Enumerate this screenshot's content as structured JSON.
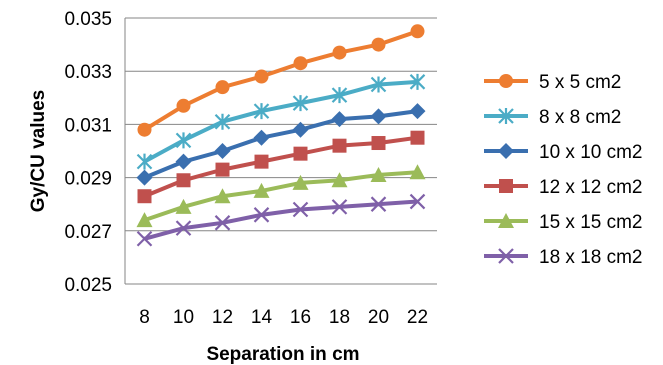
{
  "chart_data": {
    "type": "line",
    "title": "",
    "xlabel": "Separation in cm",
    "ylabel": "Gy/CU values",
    "x": [
      8,
      10,
      12,
      14,
      16,
      18,
      20,
      22
    ],
    "x_tick_labels": [
      "8",
      "10",
      "12",
      "14",
      "16",
      "18",
      "20",
      "22"
    ],
    "ylim": [
      0.025,
      0.035
    ],
    "y_ticks": [
      0.025,
      0.027,
      0.029,
      0.031,
      0.033,
      0.035
    ],
    "y_tick_labels": [
      "0.025",
      "0.027",
      "0.029",
      "0.031",
      "0.033",
      "0.035"
    ],
    "grid": "horizontal",
    "legend_position": "right",
    "series": [
      {
        "name": "5 x 5 cm2",
        "color": "#ED7D31",
        "marker": "circle",
        "values": [
          0.0308,
          0.0317,
          0.0324,
          0.0328,
          0.0333,
          0.0337,
          0.034,
          0.0345
        ]
      },
      {
        "name": "8 x 8 cm2",
        "color": "#4BACC6",
        "marker": "asterisk",
        "values": [
          0.0296,
          0.0304,
          0.0311,
          0.0315,
          0.0318,
          0.0321,
          0.0325,
          0.0326
        ]
      },
      {
        "name": "10 x 10 cm2",
        "color": "#3A6FAF",
        "marker": "diamond",
        "values": [
          0.029,
          0.0296,
          0.03,
          0.0305,
          0.0308,
          0.0312,
          0.0313,
          0.0315
        ]
      },
      {
        "name": "12 x 12 cm2",
        "color": "#C0504D",
        "marker": "square",
        "values": [
          0.0283,
          0.0289,
          0.0293,
          0.0296,
          0.0299,
          0.0302,
          0.0303,
          0.0305
        ]
      },
      {
        "name": "15 x 15 cm2",
        "color": "#9BBB59",
        "marker": "triangle",
        "values": [
          0.0274,
          0.0279,
          0.0283,
          0.0285,
          0.0288,
          0.0289,
          0.0291,
          0.0292
        ]
      },
      {
        "name": "18 x 18 cm2",
        "color": "#7F60A8",
        "marker": "x",
        "values": [
          0.0267,
          0.0271,
          0.0273,
          0.0276,
          0.0278,
          0.0279,
          0.028,
          0.0281
        ]
      }
    ]
  }
}
